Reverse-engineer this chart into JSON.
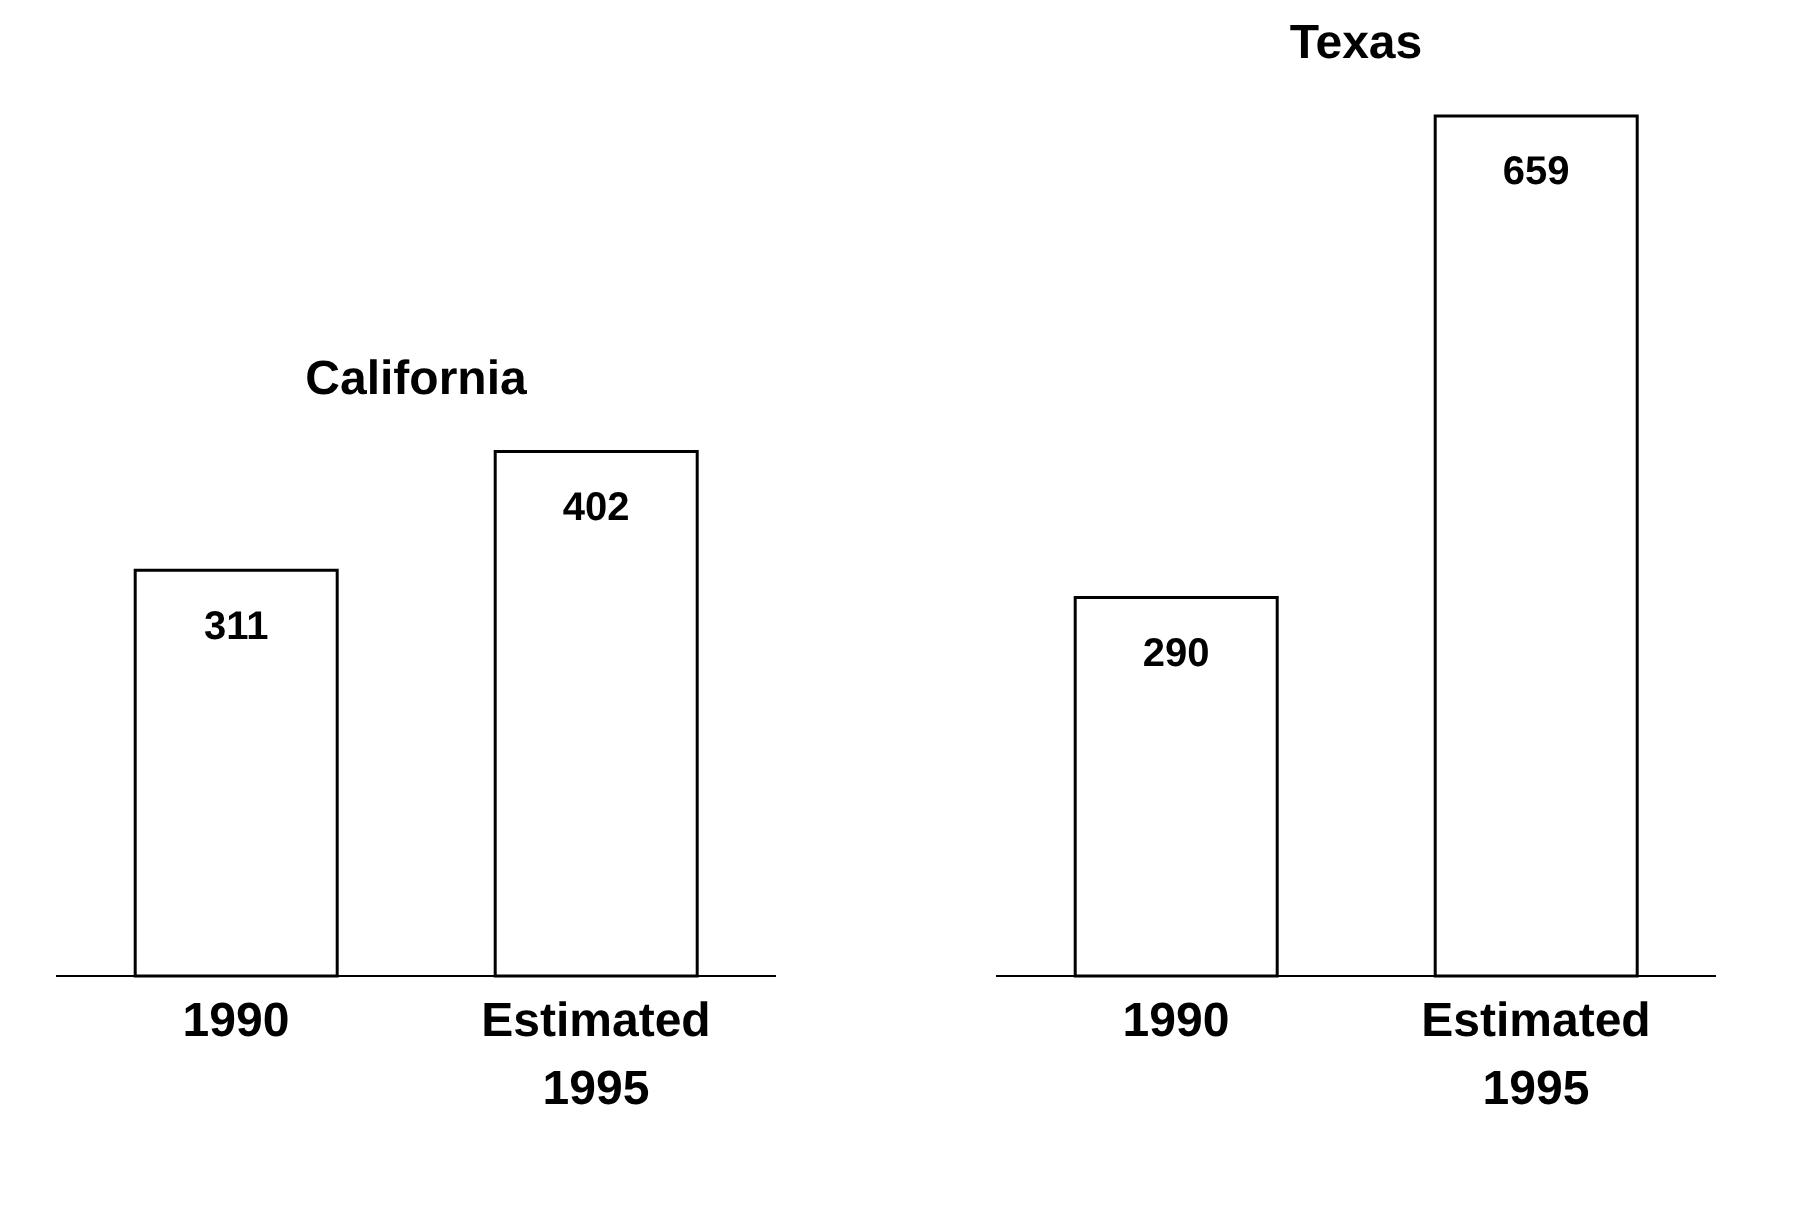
{
  "chart_data": [
    {
      "type": "bar",
      "title": "California",
      "categories": [
        "1990",
        "Estimated 1995"
      ],
      "values": [
        311,
        402
      ],
      "color": "#ffffff",
      "data_labels": true
    },
    {
      "type": "bar",
      "title": "Texas",
      "categories": [
        "1990",
        "Estimated 1995"
      ],
      "values": [
        290,
        659
      ],
      "color": "#ffffff",
      "data_labels": true
    }
  ]
}
